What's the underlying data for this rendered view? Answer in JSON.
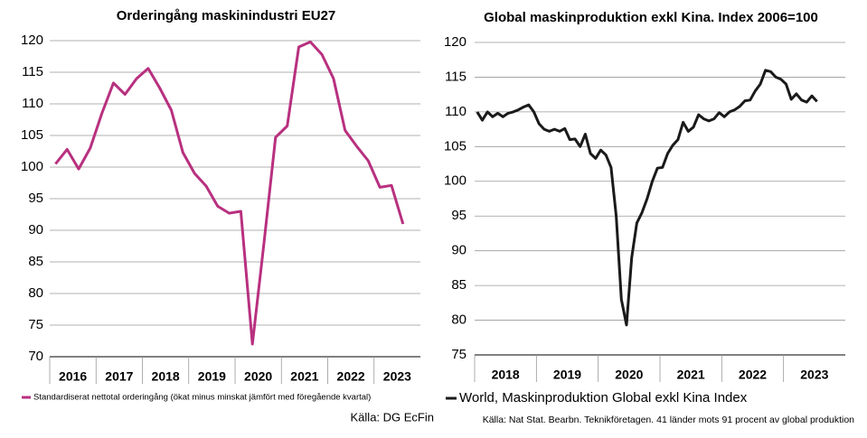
{
  "chart_data": [
    {
      "type": "line",
      "title": "Orderingång maskinindustri EU27",
      "ylim": [
        70,
        120
      ],
      "yticks": [
        70,
        75,
        80,
        85,
        90,
        95,
        100,
        105,
        110,
        115,
        120
      ],
      "grid": true,
      "year_labels": [
        "2016",
        "2017",
        "2018",
        "2019",
        "2020",
        "2021",
        "2022",
        "2023"
      ],
      "series": [
        {
          "name": "Standardiserat nettotal orderingång (ökat minus minskat jämfört med föregående kvartal)",
          "color": "#b8307f",
          "values": [
            100.5,
            102.8,
            99.7,
            103,
            108.5,
            113.3,
            111.5,
            114,
            115.6,
            112.5,
            109,
            102.3,
            99,
            97,
            93.8,
            92.7,
            93,
            72,
            88,
            104.7,
            106.5,
            119,
            119.8,
            117.8,
            114,
            105.8,
            103.3,
            101,
            96.8,
            97.1,
            91
          ]
        }
      ],
      "source": "Källa: DG EcFin"
    },
    {
      "type": "line",
      "title": "Global maskinproduktion exkl Kina. Index 2006=100",
      "ylim": [
        75,
        120
      ],
      "yticks": [
        75,
        80,
        85,
        90,
        95,
        100,
        105,
        110,
        115,
        120
      ],
      "grid": true,
      "year_labels": [
        "2018",
        "2019",
        "2020",
        "2021",
        "2022",
        "2023"
      ],
      "series": [
        {
          "name": "World, Maskinproduktion Global exkl Kina Index",
          "color": "#1a1a1a",
          "values": [
            110,
            108.8,
            110,
            109.3,
            109.8,
            109.3,
            109.8,
            110,
            110.3,
            110.7,
            111,
            110,
            108.3,
            107.5,
            107.2,
            107.5,
            107.2,
            107.6,
            106,
            106.1,
            105,
            106.8,
            104,
            103.3,
            104.5,
            103.8,
            102,
            95,
            83,
            79.3,
            89,
            94,
            95.5,
            97.5,
            100,
            101.9,
            102,
            104,
            105.2,
            106,
            108.5,
            107.2,
            107.8,
            109.6,
            109,
            108.7,
            109,
            109.9,
            109.3,
            110,
            110.3,
            110.8,
            111.6,
            111.7,
            113,
            114,
            116,
            115.8,
            115,
            114.7,
            114,
            111.8,
            112.6,
            111.7,
            111.4,
            112.3,
            111.5
          ]
        }
      ],
      "source": "Källa: Nat Stat. Bearbn. Teknikföretagen. 41 länder mots 91 procent av global produktion"
    }
  ]
}
